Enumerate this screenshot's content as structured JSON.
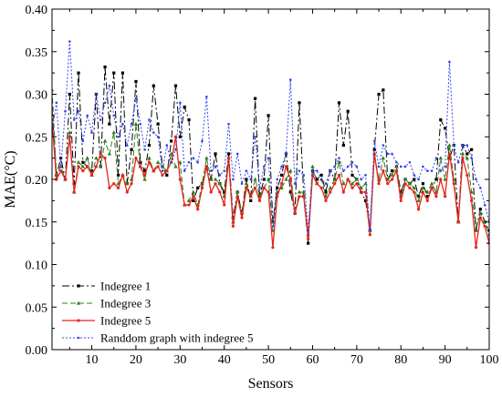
{
  "chart_data": {
    "type": "line",
    "xlabel": "Sensors",
    "ylabel": "MAE(°C)",
    "xlim": [
      1,
      100
    ],
    "ylim": [
      0.0,
      0.4
    ],
    "x_ticks": [
      10,
      20,
      30,
      40,
      50,
      60,
      70,
      80,
      90,
      100
    ],
    "y_ticks": [
      "0.00",
      "0.05",
      "0.10",
      "0.15",
      "0.20",
      "0.25",
      "0.30",
      "0.35",
      "0.40"
    ],
    "grid": false,
    "legend_position": "bottom-left",
    "x": [
      1,
      2,
      3,
      4,
      5,
      6,
      7,
      8,
      9,
      10,
      11,
      12,
      13,
      14,
      15,
      16,
      17,
      18,
      19,
      20,
      21,
      22,
      23,
      24,
      25,
      26,
      27,
      28,
      29,
      30,
      31,
      32,
      33,
      34,
      35,
      36,
      37,
      38,
      39,
      40,
      41,
      42,
      43,
      44,
      45,
      46,
      47,
      48,
      49,
      50,
      51,
      52,
      53,
      54,
      55,
      56,
      57,
      58,
      59,
      60,
      61,
      62,
      63,
      64,
      65,
      66,
      67,
      68,
      69,
      70,
      71,
      72,
      73,
      74,
      75,
      76,
      77,
      78,
      79,
      80,
      81,
      82,
      83,
      84,
      85,
      86,
      87,
      88,
      89,
      90,
      91,
      92,
      93,
      94,
      95,
      96,
      97,
      98,
      99,
      100
    ],
    "series": [
      {
        "name": "Indegree 1",
        "color": "#000000",
        "dash": "8,3,2,3",
        "marker": "square",
        "values": [
          0.283,
          0.205,
          0.225,
          0.2,
          0.3,
          0.195,
          0.325,
          0.22,
          0.215,
          0.21,
          0.3,
          0.215,
          0.332,
          0.265,
          0.325,
          0.205,
          0.325,
          0.195,
          0.235,
          0.315,
          0.22,
          0.21,
          0.24,
          0.31,
          0.265,
          0.215,
          0.205,
          0.245,
          0.31,
          0.25,
          0.285,
          0.27,
          0.175,
          0.19,
          0.195,
          0.215,
          0.2,
          0.23,
          0.195,
          0.185,
          0.23,
          0.155,
          0.185,
          0.16,
          0.2,
          0.175,
          0.295,
          0.18,
          0.2,
          0.275,
          0.15,
          0.19,
          0.205,
          0.23,
          0.185,
          0.16,
          0.29,
          0.18,
          0.125,
          0.21,
          0.2,
          0.205,
          0.185,
          0.21,
          0.2,
          0.29,
          0.24,
          0.28,
          0.205,
          0.2,
          0.185,
          0.175,
          0.14,
          0.235,
          0.3,
          0.305,
          0.2,
          0.21,
          0.215,
          0.185,
          0.2,
          0.195,
          0.2,
          0.18,
          0.195,
          0.18,
          0.19,
          0.2,
          0.27,
          0.26,
          0.225,
          0.24,
          0.15,
          0.24,
          0.23,
          0.235,
          0.14,
          0.165,
          0.15,
          0.14
        ]
      },
      {
        "name": "Indegree 3",
        "color": "#2e7d1e",
        "dash": "6,3",
        "marker": "triangle",
        "values": [
          0.305,
          0.205,
          0.215,
          0.2,
          0.255,
          0.185,
          0.22,
          0.215,
          0.225,
          0.205,
          0.225,
          0.215,
          0.245,
          0.23,
          0.255,
          0.195,
          0.205,
          0.195,
          0.2,
          0.265,
          0.215,
          0.2,
          0.225,
          0.21,
          0.22,
          0.215,
          0.21,
          0.23,
          0.215,
          0.22,
          0.17,
          0.175,
          0.185,
          0.17,
          0.195,
          0.225,
          0.2,
          0.2,
          0.195,
          0.18,
          0.225,
          0.15,
          0.185,
          0.16,
          0.195,
          0.18,
          0.2,
          0.18,
          0.19,
          0.2,
          0.14,
          0.185,
          0.19,
          0.2,
          0.21,
          0.16,
          0.185,
          0.185,
          0.135,
          0.215,
          0.195,
          0.2,
          0.18,
          0.19,
          0.2,
          0.22,
          0.195,
          0.2,
          0.195,
          0.2,
          0.19,
          0.195,
          0.14,
          0.23,
          0.2,
          0.225,
          0.2,
          0.205,
          0.215,
          0.18,
          0.2,
          0.195,
          0.19,
          0.175,
          0.19,
          0.185,
          0.195,
          0.185,
          0.225,
          0.2,
          0.24,
          0.2,
          0.15,
          0.23,
          0.225,
          0.185,
          0.14,
          0.16,
          0.15,
          0.135
        ]
      },
      {
        "name": "Indegree 5",
        "color": "#e8231c",
        "dash": "",
        "marker": "circle",
        "values": [
          0.27,
          0.2,
          0.21,
          0.2,
          0.25,
          0.185,
          0.215,
          0.21,
          0.215,
          0.205,
          0.215,
          0.23,
          0.225,
          0.19,
          0.195,
          0.19,
          0.205,
          0.185,
          0.195,
          0.225,
          0.215,
          0.205,
          0.22,
          0.21,
          0.215,
          0.205,
          0.21,
          0.22,
          0.25,
          0.2,
          0.17,
          0.17,
          0.18,
          0.165,
          0.19,
          0.215,
          0.185,
          0.195,
          0.185,
          0.17,
          0.225,
          0.145,
          0.18,
          0.155,
          0.19,
          0.18,
          0.19,
          0.175,
          0.19,
          0.185,
          0.12,
          0.18,
          0.195,
          0.215,
          0.2,
          0.16,
          0.18,
          0.18,
          0.13,
          0.205,
          0.195,
          0.19,
          0.175,
          0.185,
          0.195,
          0.205,
          0.185,
          0.2,
          0.19,
          0.195,
          0.185,
          0.185,
          0.135,
          0.23,
          0.195,
          0.21,
          0.195,
          0.2,
          0.21,
          0.175,
          0.195,
          0.19,
          0.185,
          0.165,
          0.185,
          0.175,
          0.19,
          0.18,
          0.2,
          0.18,
          0.23,
          0.195,
          0.15,
          0.225,
          0.205,
          0.175,
          0.12,
          0.155,
          0.145,
          0.125
        ]
      },
      {
        "name": "Randdom graph with indegree 5",
        "color": "#3344ee",
        "dash": "2,2",
        "marker": "dot",
        "values": [
          0.255,
          0.29,
          0.215,
          0.28,
          0.362,
          0.27,
          0.28,
          0.245,
          0.275,
          0.255,
          0.3,
          0.27,
          0.29,
          0.31,
          0.275,
          0.25,
          0.265,
          0.24,
          0.265,
          0.295,
          0.265,
          0.235,
          0.27,
          0.255,
          0.25,
          0.21,
          0.24,
          0.22,
          0.235,
          0.29,
          0.21,
          0.22,
          0.225,
          0.22,
          0.245,
          0.297,
          0.21,
          0.215,
          0.205,
          0.21,
          0.265,
          0.2,
          0.23,
          0.195,
          0.21,
          0.2,
          0.25,
          0.19,
          0.215,
          0.225,
          0.145,
          0.2,
          0.215,
          0.23,
          0.317,
          0.195,
          0.21,
          0.205,
          0.14,
          0.21,
          0.21,
          0.2,
          0.195,
          0.21,
          0.215,
          0.225,
          0.21,
          0.215,
          0.22,
          0.215,
          0.2,
          0.205,
          0.14,
          0.245,
          0.215,
          0.24,
          0.23,
          0.23,
          0.22,
          0.215,
          0.215,
          0.22,
          0.205,
          0.2,
          0.215,
          0.21,
          0.21,
          0.225,
          0.21,
          0.215,
          0.338,
          0.24,
          0.22,
          0.24,
          0.24,
          0.225,
          0.2,
          0.19,
          0.17,
          0.15
        ]
      }
    ]
  }
}
